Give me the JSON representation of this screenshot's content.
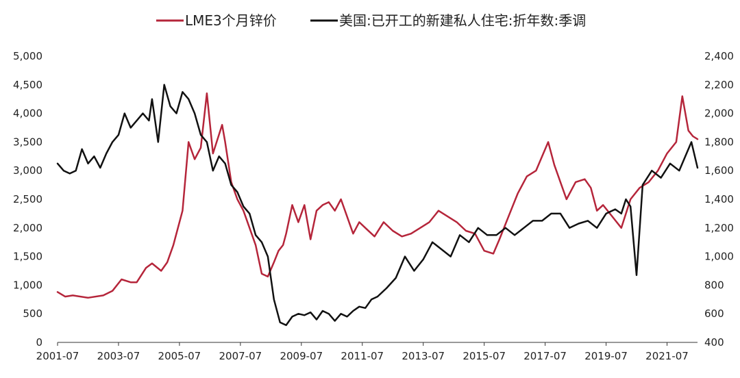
{
  "chart_data": {
    "type": "line",
    "series": [
      {
        "name": "LME3个月锌价",
        "axis": "left",
        "color": "#b5253a",
        "x": [
          2001.5,
          2001.75,
          2002.0,
          2002.5,
          2003.0,
          2003.3,
          2003.6,
          2003.9,
          2004.1,
          2004.4,
          2004.6,
          2004.9,
          2005.1,
          2005.3,
          2005.6,
          2005.8,
          2006.0,
          2006.2,
          2006.4,
          2006.6,
          2006.9,
          2007.0,
          2007.2,
          2007.4,
          2007.6,
          2007.8,
          2008.0,
          2008.2,
          2008.4,
          2008.6,
          2008.75,
          2008.9,
          2009.0,
          2009.2,
          2009.4,
          2009.6,
          2009.8,
          2010.0,
          2010.2,
          2010.4,
          2010.6,
          2010.8,
          2011.0,
          2011.2,
          2011.4,
          2011.6,
          2011.9,
          2012.2,
          2012.5,
          2012.8,
          2013.1,
          2013.4,
          2013.7,
          2014.0,
          2014.3,
          2014.6,
          2014.9,
          2015.2,
          2015.5,
          2015.8,
          2016.0,
          2016.3,
          2016.6,
          2016.9,
          2017.2,
          2017.4,
          2017.6,
          2017.8,
          2018.0,
          2018.2,
          2018.5,
          2018.8,
          2019.0,
          2019.2,
          2019.4,
          2019.7,
          2020.0,
          2020.3,
          2020.6,
          2020.9,
          2021.2,
          2021.5,
          2021.8,
          2022.0,
          2022.2,
          2022.35,
          2022.5
        ],
        "y": [
          880,
          800,
          820,
          780,
          820,
          900,
          1100,
          1050,
          1050,
          1300,
          1380,
          1250,
          1400,
          1700,
          2300,
          3500,
          3200,
          3400,
          4350,
          3300,
          3800,
          3500,
          2800,
          2500,
          2300,
          2000,
          1700,
          1200,
          1150,
          1400,
          1600,
          1700,
          1900,
          2400,
          2100,
          2400,
          1800,
          2300,
          2400,
          2450,
          2300,
          2500,
          2200,
          1900,
          2100,
          2000,
          1850,
          2100,
          1950,
          1850,
          1900,
          2000,
          2100,
          2300,
          2200,
          2100,
          1950,
          1900,
          1600,
          1550,
          1800,
          2200,
          2600,
          2900,
          3000,
          3250,
          3500,
          3100,
          2800,
          2500,
          2800,
          2850,
          2700,
          2300,
          2400,
          2200,
          2000,
          2500,
          2700,
          2800,
          3000,
          3300,
          3500,
          4300,
          3700,
          3600,
          3550
        ]
      },
      {
        "name": "美国:已开工的新建私人住宅:折年数:季调",
        "axis": "right",
        "color": "#111111",
        "x": [
          2001.5,
          2001.7,
          2001.9,
          2002.1,
          2002.3,
          2002.5,
          2002.7,
          2002.9,
          2003.1,
          2003.3,
          2003.5,
          2003.7,
          2003.9,
          2004.1,
          2004.3,
          2004.5,
          2004.6,
          2004.8,
          2005.0,
          2005.2,
          2005.4,
          2005.6,
          2005.8,
          2006.0,
          2006.2,
          2006.4,
          2006.6,
          2006.8,
          2007.0,
          2007.2,
          2007.4,
          2007.6,
          2007.8,
          2008.0,
          2008.2,
          2008.4,
          2008.6,
          2008.8,
          2009.0,
          2009.2,
          2009.4,
          2009.6,
          2009.8,
          2010.0,
          2010.2,
          2010.4,
          2010.6,
          2010.8,
          2011.0,
          2011.2,
          2011.4,
          2011.6,
          2011.8,
          2012.0,
          2012.3,
          2012.6,
          2012.9,
          2013.2,
          2013.5,
          2013.8,
          2014.1,
          2014.4,
          2014.7,
          2015.0,
          2015.3,
          2015.6,
          2015.9,
          2016.2,
          2016.5,
          2016.8,
          2017.1,
          2017.4,
          2017.7,
          2018.0,
          2018.3,
          2018.6,
          2018.9,
          2019.2,
          2019.5,
          2019.8,
          2020.0,
          2020.15,
          2020.3,
          2020.5,
          2020.7,
          2021.0,
          2021.3,
          2021.6,
          2021.9,
          2022.1,
          2022.3,
          2022.5
        ],
        "y": [
          1650,
          1600,
          1580,
          1600,
          1750,
          1650,
          1700,
          1620,
          1720,
          1800,
          1850,
          2000,
          1900,
          1950,
          2000,
          1950,
          2100,
          1800,
          2200,
          2050,
          2000,
          2150,
          2100,
          2000,
          1850,
          1800,
          1600,
          1700,
          1650,
          1500,
          1450,
          1350,
          1300,
          1150,
          1100,
          1000,
          700,
          540,
          520,
          580,
          600,
          590,
          610,
          560,
          620,
          600,
          550,
          600,
          580,
          620,
          650,
          640,
          700,
          720,
          780,
          850,
          1000,
          900,
          980,
          1100,
          1050,
          1000,
          1150,
          1100,
          1200,
          1150,
          1150,
          1200,
          1150,
          1200,
          1250,
          1250,
          1300,
          1300,
          1200,
          1230,
          1250,
          1200,
          1300,
          1330,
          1300,
          1400,
          1350,
          870,
          1500,
          1600,
          1550,
          1650,
          1600,
          1700,
          1800,
          1620
        ]
      }
    ],
    "left_axis": {
      "ylim": [
        0,
        5000
      ],
      "ticks": [
        0,
        500,
        1000,
        1500,
        2000,
        2500,
        3000,
        3500,
        4000,
        4500,
        5000
      ],
      "tick_labels": [
        "0",
        "500",
        "1,000",
        "1,500",
        "2,000",
        "2,500",
        "3,000",
        "3,500",
        "4,000",
        "4,500",
        "5,000"
      ]
    },
    "right_axis": {
      "ylim": [
        400,
        2400
      ],
      "ticks": [
        400,
        600,
        800,
        1000,
        1200,
        1400,
        1600,
        1800,
        2000,
        2200,
        2400
      ],
      "tick_labels": [
        "400",
        "600",
        "800",
        "1,000",
        "1,200",
        "1,400",
        "1,600",
        "1,800",
        "2,000",
        "2,200",
        "2,400"
      ]
    },
    "x_axis": {
      "xlim": [
        2001.5,
        2022.5
      ],
      "ticks": [
        2001.5,
        2003.5,
        2005.5,
        2007.5,
        2009.5,
        2011.5,
        2013.5,
        2015.5,
        2017.5,
        2019.5,
        2021.5
      ],
      "tick_labels": [
        "2001-07",
        "2003-07",
        "2005-07",
        "2007-07",
        "2009-07",
        "2011-07",
        "2013-07",
        "2015-07",
        "2017-07",
        "2019-07",
        "2021-07"
      ]
    },
    "legend_position": "top",
    "grid": false
  }
}
